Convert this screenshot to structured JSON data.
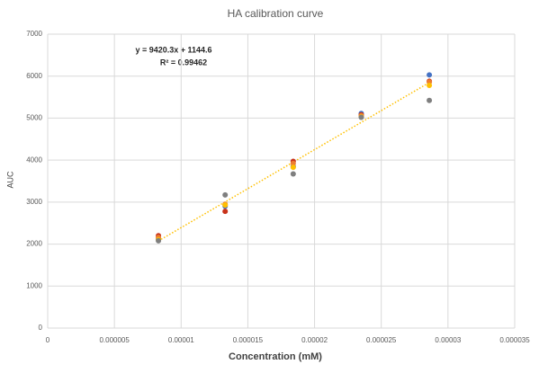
{
  "chart_data": {
    "type": "scatter",
    "title": "HA calibration curve",
    "x_label": "Concentration (mM)",
    "y_label": "AUC",
    "annotations": [
      "y = 9420.3x + 1144.6",
      "R² = 0.99462"
    ],
    "x": [
      8.3e-06,
      1.33e-05,
      1.84e-05,
      2.35e-05,
      2.86e-05
    ],
    "series": [
      {
        "color": "#4472c4",
        "values": [
          2120,
          2900,
          3850,
          5110,
          6030
        ]
      },
      {
        "color": "#c8321a",
        "values": [
          2200,
          2780,
          3970,
          5080,
          5880
        ]
      },
      {
        "color": "#ed7d31",
        "values": [
          2160,
          2950,
          3920,
          5060,
          5860
        ]
      },
      {
        "color": "#ffc000",
        "values": [
          2100,
          2930,
          3830,
          5030,
          5780
        ]
      },
      {
        "color": "#7f7f7f",
        "values": [
          2080,
          3170,
          3670,
          5020,
          5420
        ]
      }
    ],
    "trendline_color": "#ffc000",
    "xlim": [
      0,
      3.5e-05
    ],
    "xticks": [
      0,
      5e-06,
      1e-05,
      1.5e-05,
      2e-05,
      2.5e-05,
      3e-05,
      3.5e-05
    ],
    "ylim": [
      0,
      7000
    ],
    "yticks": [
      0,
      1000,
      2000,
      3000,
      4000,
      5000,
      6000,
      7000
    ],
    "grid": true
  }
}
